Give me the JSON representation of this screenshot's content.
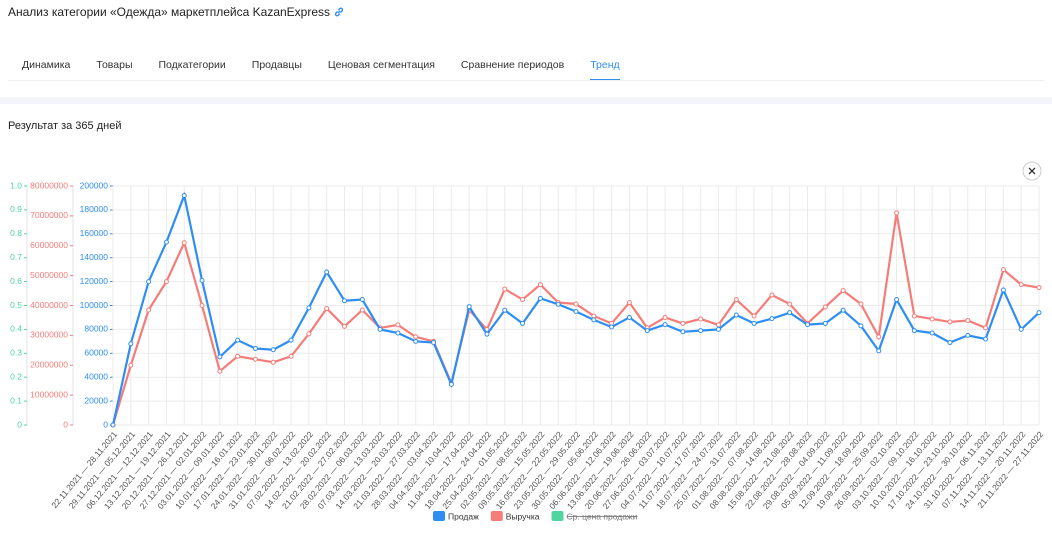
{
  "header": {
    "title": "Анализ категории «Одежда» маркетплейса KazanExpress"
  },
  "tabs": [
    "Динамика",
    "Товары",
    "Подкатегории",
    "Продавцы",
    "Ценовая сегментация",
    "Сравнение периодов",
    "Тренд"
  ],
  "active_tab": 6,
  "result_label": "Результат за 365 дней",
  "chart_data": {
    "type": "line",
    "categories": [
      "22.11.2021 — 28.11.2021",
      "29.11.2021 — 05.12.2021",
      "06.12.2021 — 12.12.2021",
      "13.12.2021 — 19.12.2021",
      "20.12.2021 — 26.12.2021",
      "27.12.2021 — 02.01.2022",
      "03.01.2022 — 09.01.2022",
      "10.01.2022 — 16.01.2022",
      "17.01.2022 — 23.01.2022",
      "24.01.2022 — 30.01.2022",
      "31.01.2022 — 06.02.2022",
      "07.02.2022 — 13.02.2022",
      "14.02.2022 — 20.02.2022",
      "21.02.2022 — 27.02.2022",
      "28.02.2022 — 06.03.2022",
      "07.03.2022 — 13.03.2022",
      "14.03.2022 — 20.03.2022",
      "21.03.2022 — 27.03.2022",
      "28.03.2022 — 03.04.2022",
      "04.04.2022 — 10.04.2022",
      "11.04.2022 — 17.04.2022",
      "18.04.2022 — 24.04.2022",
      "25.04.2022 — 01.05.2022",
      "02.05.2022 — 08.05.2022",
      "09.05.2022 — 15.05.2022",
      "16.05.2022 — 22.05.2022",
      "23.05.2022 — 29.05.2022",
      "30.05.2022 — 05.06.2022",
      "06.06.2022 — 12.06.2022",
      "13.06.2022 — 19.06.2022",
      "20.06.2022 — 26.06.2022",
      "27.06.2022 — 03.07.2022",
      "04.07.2022 — 10.07.2022",
      "11.07.2022 — 17.07.2022",
      "18.07.2022 — 24.07.2022",
      "25.07.2022 — 31.07.2022",
      "01.08.2022 — 07.08.2022",
      "08.08.2022 — 14.08.2022",
      "15.08.2022 — 21.08.2022",
      "22.08.2022 — 28.08.2022",
      "29.08.2022 — 04.09.2022",
      "05.09.2022 — 11.09.2022",
      "12.09.2022 — 18.09.2022",
      "19.09.2022 — 25.09.2022",
      "26.09.2022 — 02.10.2022",
      "03.10.2022 — 09.10.2022",
      "10.10.2022 — 16.10.2022",
      "17.10.2022 — 23.10.2022",
      "24.10.2022 — 30.10.2022",
      "31.10.2022 — 06.11.2022",
      "07.11.2022 — 13.11.2022",
      "14.11.2022 — 20.11.2022",
      "21.11.2022 — 27.11.2022"
    ],
    "series": [
      {
        "name": "Продаж",
        "color": "#2f8ef2",
        "axis": "y",
        "values": [
          0,
          68000,
          120000,
          153000,
          192000,
          121000,
          57000,
          71000,
          64000,
          63000,
          71000,
          98000,
          128000,
          104000,
          105000,
          80000,
          77000,
          70000,
          69000,
          34000,
          99000,
          76000,
          96000,
          85000,
          106000,
          101000,
          95000,
          88000,
          82000,
          90000,
          79000,
          84000,
          78000,
          79000,
          80000,
          92000,
          85000,
          89000,
          94000,
          84000,
          85000,
          96000,
          83000,
          62000,
          105000,
          79000,
          77000,
          69000,
          75000,
          72000,
          113000,
          80000,
          94000
        ]
      },
      {
        "name": "Выручка",
        "color": "#f47d7a",
        "axis": "y2",
        "values": [
          0,
          20000000,
          38500000,
          48000000,
          61000000,
          40000000,
          18000000,
          23000000,
          22000000,
          21000000,
          23000000,
          30500000,
          39000000,
          33000000,
          38500000,
          32500000,
          33500000,
          29500000,
          28000000,
          14000000,
          38500000,
          32000000,
          45500000,
          42000000,
          47000000,
          41000000,
          40500000,
          36500000,
          34000000,
          41000000,
          32500000,
          36000000,
          34000000,
          35500000,
          33500000,
          42000000,
          36500000,
          43500000,
          40500000,
          34000000,
          39500000,
          45000000,
          40500000,
          29500000,
          71000000,
          36500000,
          35500000,
          34500000,
          35000000,
          32500000,
          52000000,
          47000000,
          46000000
        ]
      },
      {
        "name": "Ср. цена продажи",
        "color": "#4fd5a0",
        "axis": "y3",
        "hidden": true
      }
    ],
    "ylim": [
      0,
      200000
    ],
    "yticks": [
      0,
      20000,
      40000,
      60000,
      80000,
      100000,
      120000,
      140000,
      160000,
      180000,
      200000
    ],
    "y2lim": [
      0,
      80000000
    ],
    "y2ticks": [
      0,
      10000000,
      20000000,
      30000000,
      40000000,
      50000000,
      60000000,
      70000000,
      80000000
    ],
    "y3lim": [
      0,
      1
    ],
    "y3ticks": [
      0,
      0.1,
      0.2,
      0.3,
      0.4,
      0.5,
      0.6,
      0.7,
      0.8,
      0.9,
      {
        "value": 1,
        "label": "1.0"
      }
    ],
    "grid": true
  }
}
